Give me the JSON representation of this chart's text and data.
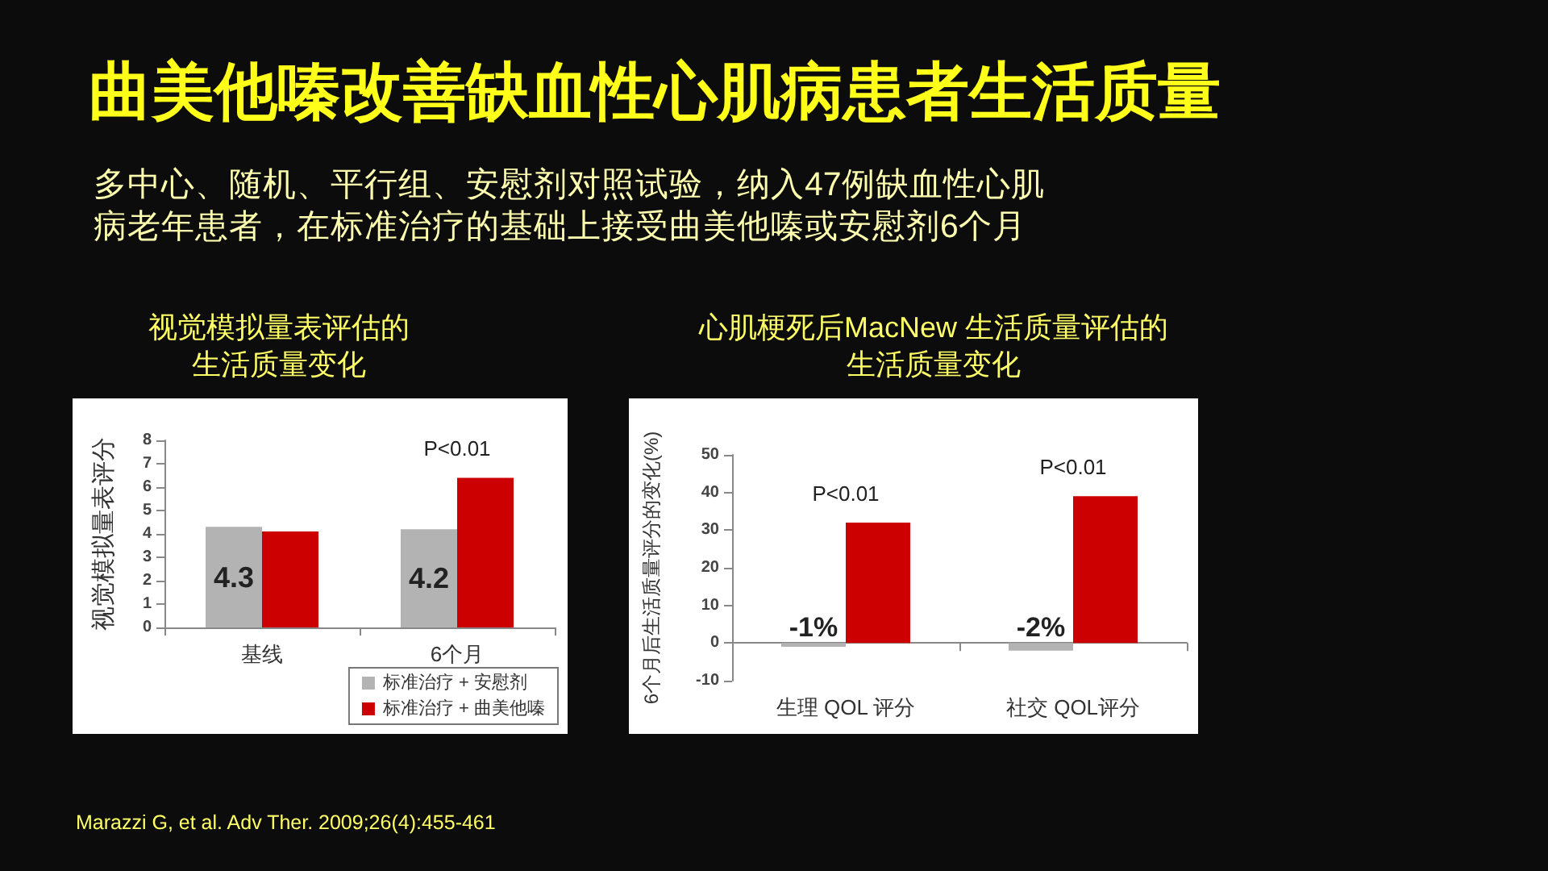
{
  "chart_data": [
    {
      "type": "other",
      "title": "曲美他嗪改善缺血性心肌病患者生活质量",
      "subtitle": "多中心、随机、平行组、安慰剂对照试验，纳入47例缺血性心肌病老年患者，在标准治疗的基础上接受曲美他嗪或安慰剂6个月",
      "annotations": [
        "Marazzi G, et al. Adv Ther. 2009;26(4):455-461"
      ]
    },
    {
      "type": "bar",
      "title": "视觉模拟量表评估的生活质量变化",
      "ylabel": "视觉模拟量表评分",
      "categories": [
        "基线",
        "6个月"
      ],
      "series": [
        {
          "name": "标准治疗 + 安慰剂",
          "color": "#b3b3b3",
          "values": [
            4.3,
            4.2
          ],
          "value_labels": [
            "4.3",
            "4.2"
          ]
        },
        {
          "name": "标准治疗 + 曲美他嗪",
          "color": "#cc0000",
          "values": [
            4.1,
            6.4
          ]
        }
      ],
      "ylim": [
        0,
        8
      ],
      "yticks": [
        0,
        1,
        2,
        3,
        4,
        5,
        6,
        7,
        8
      ],
      "annotations": [
        "P<0.01"
      ],
      "legend": "bottom right"
    },
    {
      "type": "bar",
      "title": "心肌梗死后MacNew 生活质量评估的生活质量变化",
      "ylabel": "6个月后生活质量评分的变化(%)",
      "categories": [
        "生理 QOL 评分",
        "社交 QOL评分"
      ],
      "series": [
        {
          "color": "#b3b3b3",
          "values": [
            -1,
            -2
          ],
          "value_labels": [
            "-1%",
            "-2%"
          ]
        },
        {
          "color": "#cc0000",
          "values": [
            32,
            39
          ]
        }
      ],
      "ylim": [
        -10,
        50
      ],
      "yticks": [
        -10,
        0,
        10,
        20,
        30,
        40,
        50
      ],
      "annotations": [
        "P<0.01",
        "P<0.01"
      ]
    }
  ]
}
